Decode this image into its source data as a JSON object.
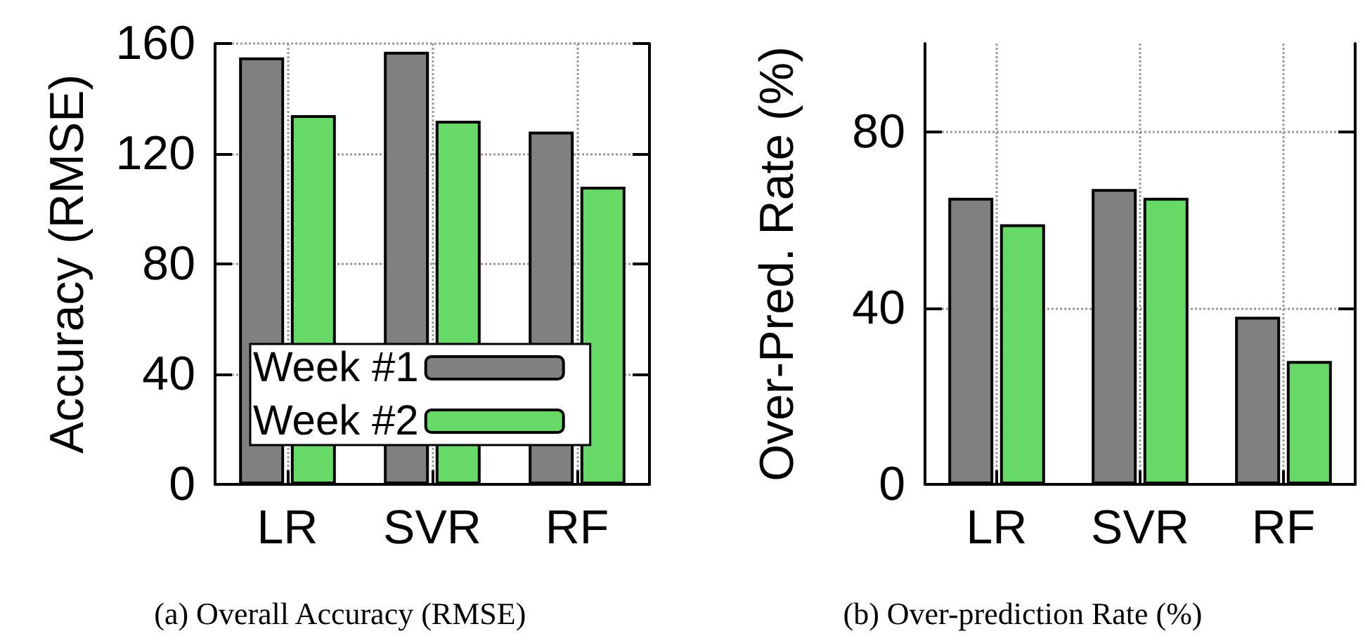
{
  "chart_data": [
    {
      "type": "bar",
      "ylabel": "Accuracy (RMSE)",
      "categories": [
        "LR",
        "SVR",
        "RF"
      ],
      "series": [
        {
          "name": "Week #1",
          "color": "#808080",
          "values": [
            155,
            157,
            128
          ]
        },
        {
          "name": "Week #2",
          "color": "#66d966",
          "values": [
            134,
            132,
            108
          ]
        }
      ],
      "ylim": [
        0,
        160
      ],
      "yticks": [
        0,
        40,
        80,
        120,
        160
      ],
      "grid": true,
      "legend": "bottom",
      "annotations": [
        "(a) Overall Accuracy (RMSE)"
      ]
    },
    {
      "type": "bar",
      "ylabel": "Over-Pred. Rate (%)",
      "categories": [
        "LR",
        "SVR",
        "RF"
      ],
      "series": [
        {
          "color": "#808080",
          "values": [
            65,
            67,
            38
          ]
        },
        {
          "color": "#66d966",
          "values": [
            59,
            65,
            28
          ]
        }
      ],
      "ylim": [
        0,
        100
      ],
      "yticks": [
        0,
        40,
        80
      ],
      "grid": true,
      "annotations": [
        "(b) Over-prediction Rate (%)"
      ]
    }
  ]
}
